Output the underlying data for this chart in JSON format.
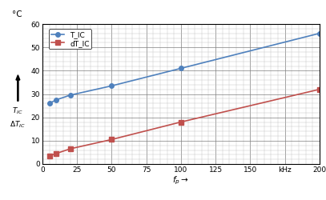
{
  "xlabel": "$f_p \\rightarrow$",
  "ylabel_top": "°C",
  "ylabel_mid": "$T_{IC}$",
  "ylabel_bot": "$\\Delta T_{IC}$",
  "xlim": [
    0,
    200
  ],
  "ylim": [
    0,
    60
  ],
  "xticks": [
    0,
    25,
    50,
    75,
    100,
    125,
    150,
    175,
    200
  ],
  "xtick_labels": [
    "0",
    "25",
    "50",
    "75",
    "100",
    "125",
    "150",
    "kHz",
    "200"
  ],
  "yticks": [
    0,
    10,
    20,
    30,
    40,
    50,
    60
  ],
  "T_IC_x": [
    5,
    10,
    20,
    50,
    100,
    200
  ],
  "T_IC_y": [
    26.0,
    27.5,
    29.5,
    33.5,
    41.0,
    56.0
  ],
  "dT_IC_x": [
    5,
    10,
    20,
    50,
    100,
    200
  ],
  "dT_IC_y": [
    3.5,
    4.5,
    6.5,
    10.5,
    18.0,
    32.0
  ],
  "T_IC_color": "#4f81bd",
  "dT_IC_color": "#c0504d",
  "bg_color": "#ffffff",
  "plot_bg_color": "#ffffff",
  "grid_major_color": "#7f7f7f",
  "grid_minor_color": "#bfbfbf",
  "legend_T_IC": "T_IC",
  "legend_dT_IC": "dT_IC",
  "markersize": 4,
  "linewidth": 1.2,
  "tick_fontsize": 6.5,
  "label_fontsize": 7.5
}
